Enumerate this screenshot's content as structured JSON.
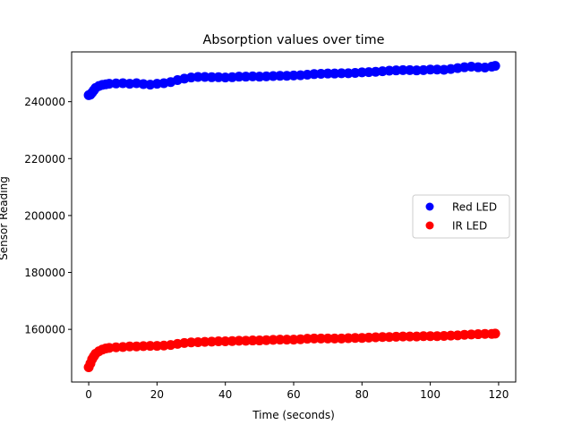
{
  "chart_data": {
    "type": "scatter",
    "title": "Absorption values over time",
    "xlabel": "Time (seconds)",
    "ylabel": "Sensor Reading",
    "xlim": [
      -5,
      125
    ],
    "ylim": [
      141500,
      257500
    ],
    "xticks": [
      0,
      20,
      40,
      60,
      80,
      100,
      120
    ],
    "yticks": [
      160000,
      180000,
      200000,
      220000,
      240000
    ],
    "grid": false,
    "legend_position": "center-right",
    "series": [
      {
        "name": "Red LED",
        "color": "#0000ff",
        "x": [
          0,
          0.5,
          1,
          1.5,
          2,
          3,
          4,
          5,
          6,
          8,
          10,
          12,
          14,
          16,
          18,
          20,
          22,
          24,
          26,
          28,
          30,
          32,
          34,
          36,
          38,
          40,
          42,
          44,
          46,
          48,
          50,
          52,
          54,
          56,
          58,
          60,
          62,
          64,
          66,
          68,
          70,
          72,
          74,
          76,
          78,
          80,
          82,
          84,
          86,
          88,
          90,
          92,
          94,
          96,
          98,
          100,
          102,
          104,
          106,
          108,
          110,
          112,
          114,
          116,
          118,
          119
        ],
        "y": [
          242300,
          242500,
          243200,
          244000,
          244800,
          245500,
          245900,
          246100,
          246300,
          246400,
          246500,
          246300,
          246500,
          246200,
          246000,
          246300,
          246500,
          246900,
          247600,
          248100,
          248500,
          248700,
          248700,
          248600,
          248600,
          248500,
          248600,
          248800,
          248800,
          248900,
          248800,
          248900,
          249000,
          249100,
          249100,
          249200,
          249300,
          249500,
          249700,
          249800,
          249900,
          249900,
          250000,
          250000,
          250100,
          250300,
          250400,
          250500,
          250700,
          250900,
          251000,
          251100,
          251100,
          251000,
          251100,
          251300,
          251300,
          251200,
          251500,
          251800,
          252100,
          252300,
          252100,
          252000,
          252300,
          252600
        ]
      },
      {
        "name": "IR LED",
        "color": "#ff0000",
        "x": [
          0,
          0.5,
          1,
          1.5,
          2,
          3,
          4,
          5,
          6,
          8,
          10,
          12,
          14,
          16,
          18,
          20,
          22,
          24,
          26,
          28,
          30,
          32,
          34,
          36,
          38,
          40,
          42,
          44,
          46,
          48,
          50,
          52,
          54,
          56,
          58,
          60,
          62,
          64,
          66,
          68,
          70,
          72,
          74,
          76,
          78,
          80,
          82,
          84,
          86,
          88,
          90,
          92,
          94,
          96,
          98,
          100,
          102,
          104,
          106,
          108,
          110,
          112,
          114,
          116,
          118,
          119
        ],
        "y": [
          146700,
          148000,
          149500,
          150500,
          151400,
          152300,
          152900,
          153300,
          153500,
          153700,
          153800,
          154000,
          154000,
          154100,
          154200,
          154200,
          154300,
          154500,
          154900,
          155200,
          155400,
          155500,
          155600,
          155700,
          155800,
          155800,
          155900,
          156000,
          156000,
          156100,
          156100,
          156200,
          156300,
          156400,
          156400,
          156400,
          156500,
          156700,
          156800,
          156800,
          156800,
          156800,
          156800,
          156900,
          157000,
          157000,
          157100,
          157200,
          157300,
          157300,
          157400,
          157500,
          157500,
          157500,
          157600,
          157600,
          157600,
          157700,
          157800,
          157900,
          158100,
          158200,
          158300,
          158400,
          158400,
          158500
        ]
      }
    ]
  }
}
